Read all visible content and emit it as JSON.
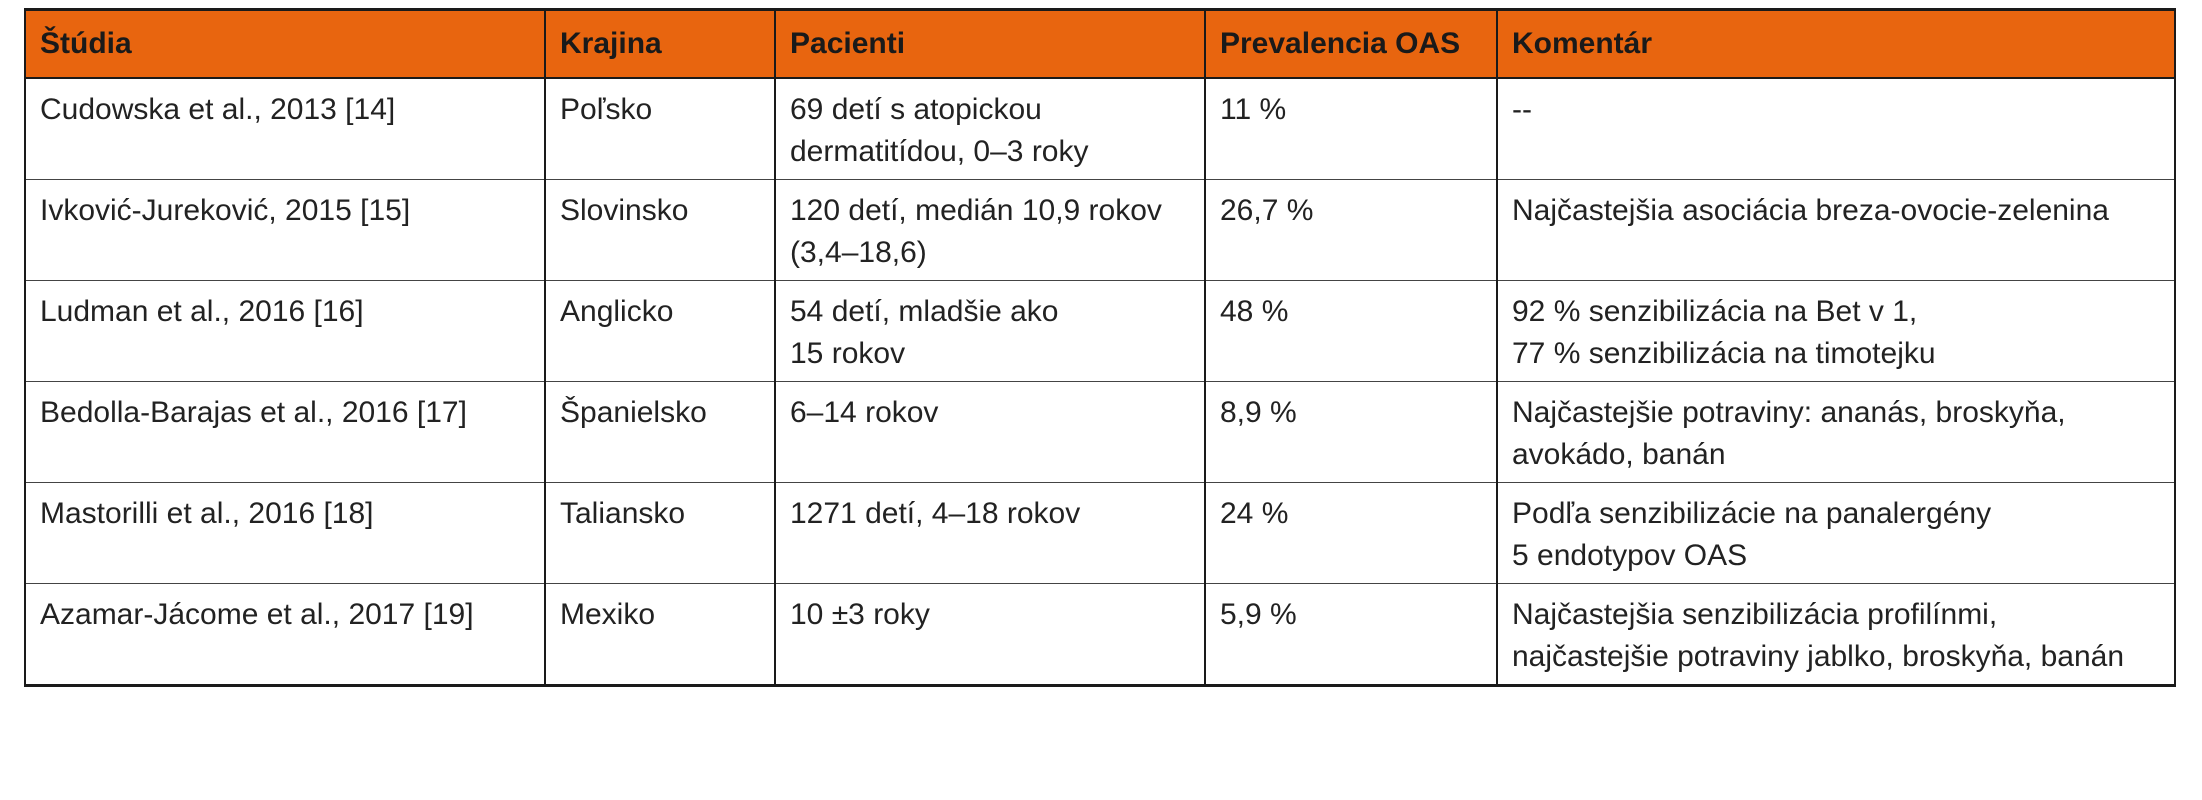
{
  "table": {
    "headers": [
      "Štúdia",
      "Krajina",
      "Pacienti",
      "Prevalencia OAS",
      "Komentár"
    ],
    "rows": [
      {
        "study": "Cudowska et al., 2013 [14]",
        "country": "Poľsko",
        "patients": [
          "69 detí s atopickou",
          "dermatitídou, 0–3 roky"
        ],
        "prevalence": "11 %",
        "comment": [
          "--"
        ]
      },
      {
        "study": "Ivković-Jureković, 2015 [15]",
        "country": "Slovinsko",
        "patients": [
          "120 detí, medián 10,9 rokov",
          "(3,4–18,6)"
        ],
        "prevalence": "26,7 %",
        "comment": [
          "Najčastejšia asociácia breza-ovocie-zelenina"
        ]
      },
      {
        "study": "Ludman et al., 2016 [16]",
        "country": "Anglicko",
        "patients": [
          "54 detí, mladšie ako",
          "15 rokov"
        ],
        "prevalence": "48 %",
        "comment": [
          "92 % senzibilizácia na Bet v 1,",
          "77 % senzibilizácia na timotejku"
        ]
      },
      {
        "study": "Bedolla-Barajas et al., 2016 [17]",
        "country": "Španielsko",
        "patients": [
          "6–14 rokov"
        ],
        "prevalence": "8,9 %",
        "comment": [
          "Najčastejšie potraviny: ananás, broskyňa,",
          "avokádo, banán"
        ]
      },
      {
        "study": "Mastorilli et al., 2016 [18]",
        "country": "Taliansko",
        "patients": [
          "1271 detí, 4–18 rokov"
        ],
        "prevalence": "24 %",
        "comment": [
          "Podľa senzibilizácie na panalergény",
          "5 endotypov OAS"
        ]
      },
      {
        "study": "Azamar-Jácome et al., 2017 [19]",
        "country": "Mexiko",
        "patients": [
          "10 ±3 roky"
        ],
        "prevalence": "5,9 %",
        "comment": [
          "Najčastejšia senzibilizácia profilínmi,",
          "najčastejšie potraviny jablko, broskyňa, banán"
        ]
      }
    ]
  },
  "colors": {
    "header_bg": "#e8650f",
    "border": "#1a1a1a",
    "text": "#222222"
  }
}
